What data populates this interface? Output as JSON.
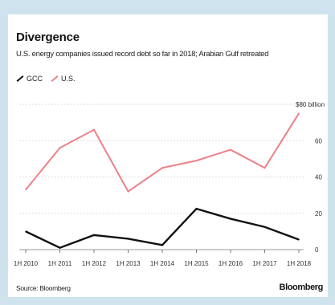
{
  "chart_data": {
    "type": "line",
    "title": "Divergence",
    "subtitle": "U.S. energy companies issued record debt so far in 2018; Arabian Gulf retreated",
    "categories": [
      "1H 2010",
      "1H 2011",
      "1H 2012",
      "1H 2013",
      "1H 2014",
      "1H 2015",
      "1H 2016",
      "1H 2017",
      "1H 2018"
    ],
    "series": [
      {
        "name": "GCC",
        "color": "#111111",
        "values": [
          10,
          1,
          8,
          6,
          2.5,
          22.5,
          17,
          12.5,
          5.5
        ]
      },
      {
        "name": "U.S.",
        "color": "#ee7f87",
        "values": [
          33,
          56,
          66,
          32,
          45,
          49,
          55,
          45,
          75
        ]
      }
    ],
    "yticks": [
      "0",
      "20",
      "40",
      "60"
    ],
    "ylim": [
      0,
      80
    ],
    "grid": true,
    "annotation": "$80 billion",
    "legend_position": "top-left"
  },
  "footer": {
    "source": "Source: Bloomberg",
    "brand": "Bloomberg"
  }
}
